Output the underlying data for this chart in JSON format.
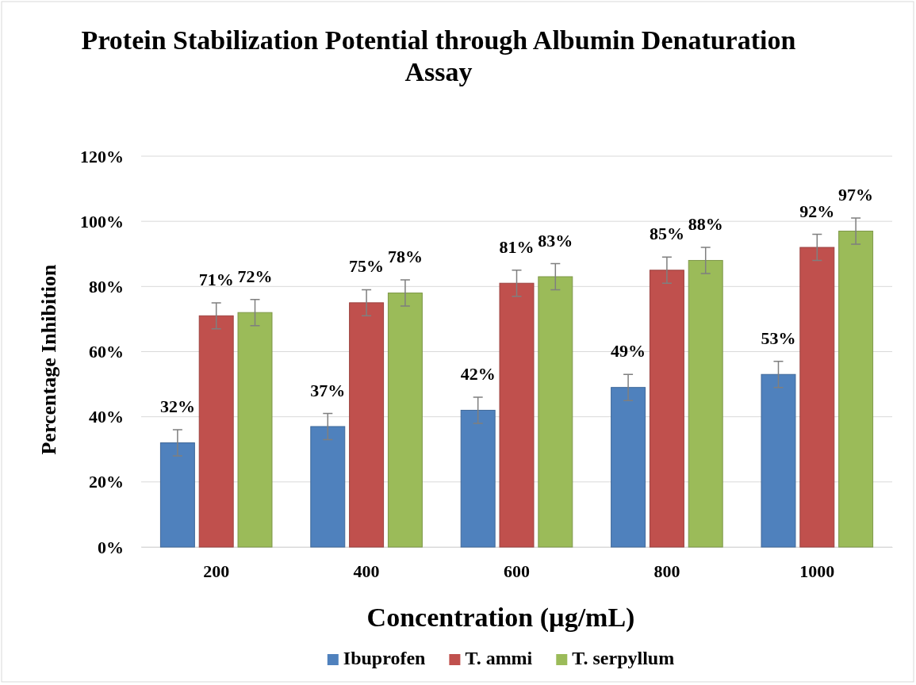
{
  "chart_data": {
    "type": "bar",
    "title": "Protein Stabilization Potential through Albumin Denaturation Assay",
    "xlabel": "Concentration (µg/mL)",
    "ylabel": "Percentage Inhibition",
    "categories": [
      "200",
      "400",
      "600",
      "800",
      "1000"
    ],
    "series": [
      {
        "name": "Ibuprofen",
        "color": "#4f81bd",
        "values": [
          32,
          37,
          42,
          49,
          53
        ],
        "errors": [
          4,
          4,
          4,
          4,
          4
        ],
        "value_labels": [
          "32%",
          "37%",
          "42%",
          "49%",
          "53%"
        ]
      },
      {
        "name": "T. ammi",
        "color": "#c0504d",
        "values": [
          71,
          75,
          81,
          85,
          92
        ],
        "errors": [
          4,
          4,
          4,
          4,
          4
        ],
        "value_labels": [
          "71%",
          "75%",
          "81%",
          "85%",
          "92%"
        ]
      },
      {
        "name": "T. serpyllum",
        "color": "#9bbb59",
        "values": [
          72,
          78,
          83,
          88,
          97
        ],
        "errors": [
          4,
          4,
          4,
          4,
          4
        ],
        "value_labels": [
          "72%",
          "78%",
          "83%",
          "88%",
          "97%"
        ]
      }
    ],
    "ylim": [
      0,
      120
    ],
    "yticks": [
      {
        "value": 0,
        "label": "0%"
      },
      {
        "value": 20,
        "label": "20%"
      },
      {
        "value": 40,
        "label": "40%"
      },
      {
        "value": 60,
        "label": "60%"
      },
      {
        "value": 80,
        "label": "80%"
      },
      {
        "value": 100,
        "label": "100%"
      },
      {
        "value": 120,
        "label": "120%"
      }
    ],
    "grid": "y",
    "legend": "bottom"
  }
}
